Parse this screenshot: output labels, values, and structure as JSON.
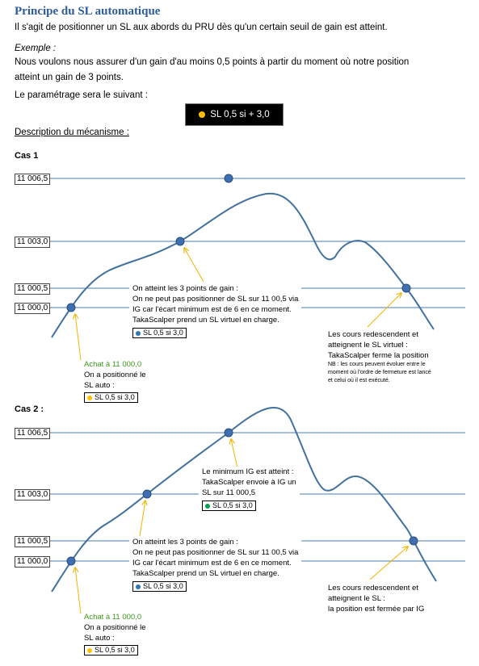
{
  "doc": {
    "title": "Principe du SL automatique",
    "intro": "Il s'agit de positionner un SL aux abords du PRU dès qu'un certain seuil de gain est atteint.",
    "example_label": "Exemple :",
    "example_line1": "Nous voulons nous assurer d'un gain d'au moins 0,5 points à partir du moment où notre position",
    "example_line2": "atteint un gain de 3 points.",
    "setting_text": "Le paramétrage sera le suivant :",
    "setting_box": "SL 0,5 si + 3,0",
    "mechanism_label": "Description du mécanisme :"
  },
  "colors": {
    "line": "#41719c",
    "grid": "#4a7eb5",
    "node": "#3f6fae",
    "arrow": "#f0b400",
    "yellow_dot": "#ffc000",
    "blue_dot": "#2e75b6",
    "green_dot": "#00a050"
  },
  "case1": {
    "title": "Cas 1",
    "levels": [
      "11 006,5",
      "11 003,0",
      "11 000,5",
      "11 000,0"
    ],
    "achat": "Achat à 11 000,0",
    "positioned": [
      "On a positionné le",
      "SL auto :"
    ],
    "sl_box": "SL 0,5 si 3,0",
    "gain_note": [
      "On atteint les 3 points de gain :",
      "On ne peut pas positionner de SL sur 11 00,5 via",
      "IG car l'écart minimum est de 6 en ce moment.",
      "TakaScalper prend un SL virtuel en charge."
    ],
    "virtual_box": "SL 0,5 si 3,0",
    "fall_note": [
      "Les cours redescendent et",
      "atteignent le SL virtuel :",
      "TakaScalper ferme la position"
    ],
    "nb_note": [
      "NB : les cours peuvent évoluer entre le",
      "moment où l'ordre de fermeture est lancé",
      "et celui où il est exécuté."
    ]
  },
  "case2": {
    "title": "Cas 2 :",
    "levels": [
      "11 006,5",
      "11 003,0",
      "11 000,5",
      "11 000,0"
    ],
    "achat": "Achat à 11 000,0",
    "positioned": [
      "On a positionné le",
      "SL auto :"
    ],
    "sl_box": "SL 0,5 si 3,0",
    "gain_note": [
      "On atteint les 3 points de gain :",
      "On ne peut pas positionner de SL sur 11 00,5 via",
      "IG car l'écart minimum est de 6 en ce moment.",
      "TakaScalper prend un SL virtuel en charge."
    ],
    "virtual_box": "SL 0,5 si 3,0",
    "ig_note": [
      "Le minimum IG est atteint :",
      "TakaScalper envoie à IG un",
      "SL sur 11 000,5"
    ],
    "ig_box": "SL 0,5 si 3,0",
    "fall_note": [
      "Les cours redescendent et",
      "atteignent le SL :",
      "la position est fermée par IG"
    ]
  }
}
